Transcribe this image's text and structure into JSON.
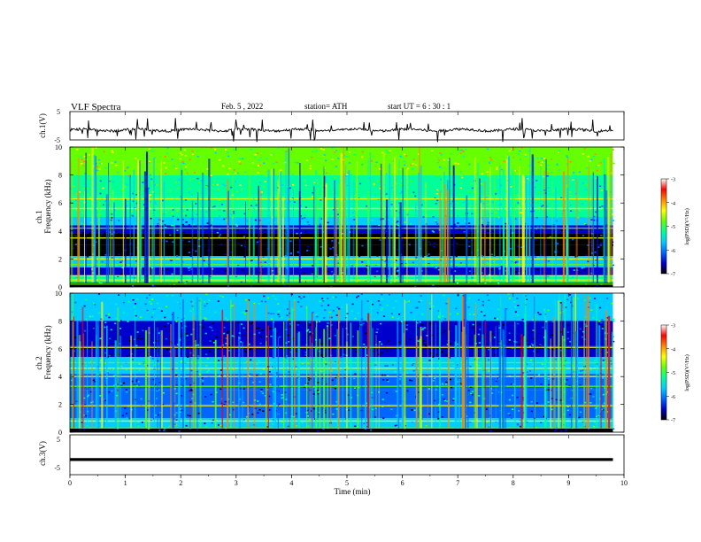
{
  "header": {
    "title": "VLF  Spectra",
    "date": "Feb. 5  , 2022",
    "station": "station= ATH",
    "start": "start  UT  =   6  : 30 : 1"
  },
  "panels": {
    "ch1v": {
      "ylabel": "ch.1(V)",
      "ticks": [
        "5",
        "-5"
      ]
    },
    "spec1": {
      "ylabel_top": "ch.1",
      "ylabel_bottom": "Frequency  (kHz)",
      "ticks": [
        "0",
        "2",
        "4",
        "6",
        "8",
        "10"
      ]
    },
    "spec2": {
      "ylabel_top": "ch.2",
      "ylabel_bottom": "Frequency  (kHz)",
      "ticks": [
        "0",
        "2",
        "4",
        "6",
        "8",
        "10"
      ]
    },
    "ch3v": {
      "ylabel": "ch.3(V)",
      "ticks": [
        "5",
        "-5"
      ]
    }
  },
  "xaxis": {
    "label": "Time  (min)",
    "ticks": [
      "0",
      "1",
      "2",
      "3",
      "4",
      "5",
      "6",
      "7",
      "8",
      "9",
      "10"
    ]
  },
  "colorbar": {
    "label": "log(PSD)(V²/Hz)",
    "ticks": [
      "-3",
      "-4",
      "-5",
      "-6",
      "-7"
    ],
    "stops": [
      "#000000",
      "#0000cc",
      "#0066ff",
      "#00ccff",
      "#00ff99",
      "#66ff00",
      "#ffff00",
      "#ff8800",
      "#ff0000",
      "#ffffff"
    ]
  },
  "chart_data": [
    {
      "type": "line",
      "title": "ch.1(V)",
      "xlabel": "Time  (min)",
      "ylabel": "ch.1(V)",
      "xlim": [
        0,
        10
      ],
      "ylim": [
        -5,
        5
      ],
      "series": [
        {
          "x": [
            0,
            9.8
          ],
          "values": [
            -1.5,
            -1.5
          ]
        }
      ]
    },
    {
      "type": "heatmap",
      "title": "ch.1",
      "xlabel": "Time  (min)",
      "ylabel": "Frequency  (kHz)",
      "xlim": [
        0,
        10
      ],
      "ylim": [
        0,
        10
      ],
      "data_extent_x": [
        0,
        9.8
      ],
      "colorbar_label": "log(PSD)(V²/Hz)",
      "colorbar_range": [
        -7,
        -3
      ],
      "bands_khz": [
        {
          "f": [
            8.0,
            10.0
          ],
          "level": 0.62
        },
        {
          "f": [
            6.5,
            8.0
          ],
          "level": 0.5
        },
        {
          "f": [
            5.0,
            6.5
          ],
          "level": 0.45
        },
        {
          "f": [
            4.4,
            5.0
          ],
          "level": 0.35
        },
        {
          "f": [
            3.8,
            4.4
          ],
          "level": 0.18
        },
        {
          "f": [
            3.0,
            3.8
          ],
          "level": 0.08
        },
        {
          "f": [
            2.2,
            3.0
          ],
          "level": 0.1
        },
        {
          "f": [
            1.4,
            2.2
          ],
          "level": 0.35
        },
        {
          "f": [
            0.8,
            1.4
          ],
          "level": 0.18
        },
        {
          "f": [
            0.3,
            0.8
          ],
          "level": 0.45
        },
        {
          "f": [
            0.0,
            0.3
          ],
          "level": 0.05
        }
      ],
      "lines_khz": [
        0.2,
        0.5,
        0.8,
        1.6,
        2.0,
        3.5,
        4.2,
        5.6,
        6.3
      ]
    },
    {
      "type": "heatmap",
      "title": "ch.2",
      "xlabel": "Time  (min)",
      "ylabel": "Frequency  (kHz)",
      "xlim": [
        0,
        10
      ],
      "ylim": [
        0,
        10
      ],
      "data_extent_x": [
        0,
        9.8
      ],
      "colorbar_label": "log(PSD)(V²/Hz)",
      "colorbar_range": [
        -7,
        -3
      ],
      "bands_khz": [
        {
          "f": [
            8.0,
            10.0
          ],
          "level": 0.38
        },
        {
          "f": [
            6.2,
            8.0
          ],
          "level": 0.22
        },
        {
          "f": [
            5.4,
            6.2
          ],
          "level": 0.14
        },
        {
          "f": [
            4.2,
            5.4
          ],
          "level": 0.42
        },
        {
          "f": [
            3.0,
            4.2
          ],
          "level": 0.24
        },
        {
          "f": [
            2.0,
            3.0
          ],
          "level": 0.33
        },
        {
          "f": [
            1.0,
            2.0
          ],
          "level": 0.3
        },
        {
          "f": [
            0.3,
            1.0
          ],
          "level": 0.38
        },
        {
          "f": [
            0.0,
            0.3
          ],
          "level": 0.05
        }
      ],
      "lines_khz": [
        0.3,
        0.8,
        1.9,
        3.3,
        4.0,
        4.6,
        5.0,
        6.1
      ]
    },
    {
      "type": "line",
      "title": "ch.3(V)",
      "xlabel": "Time  (min)",
      "ylabel": "ch.3(V)",
      "xlim": [
        0,
        10
      ],
      "ylim": [
        -5,
        5
      ],
      "series": [
        {
          "x": [
            0,
            9.8
          ],
          "values": [
            -1.2,
            -1.2
          ]
        }
      ]
    }
  ]
}
